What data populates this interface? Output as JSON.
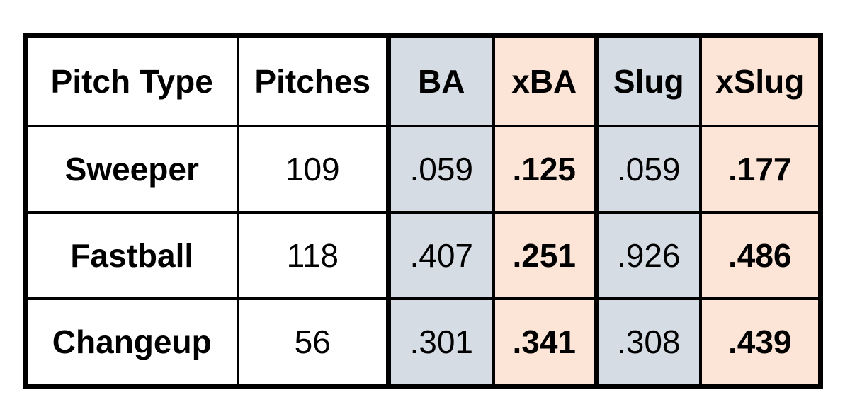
{
  "table": {
    "headers": [
      "Pitch Type",
      "Pitches",
      "BA",
      "xBA",
      "Slug",
      "xSlug"
    ],
    "rows": [
      {
        "pitch_type": "Sweeper",
        "pitches": "109",
        "ba": ".059",
        "xba": ".125",
        "slug": ".059",
        "xslug": ".177"
      },
      {
        "pitch_type": "Fastball",
        "pitches": "118",
        "ba": ".407",
        "xba": ".251",
        "slug": ".926",
        "xslug": ".486"
      },
      {
        "pitch_type": "Changeup",
        "pitches": "56",
        "ba": ".301",
        "xba": ".341",
        "slug": ".308",
        "xslug": ".439"
      }
    ],
    "colors": {
      "ba_slug_fill": "#d6dce4",
      "xba_xslug_fill": "#fce4d6"
    }
  }
}
